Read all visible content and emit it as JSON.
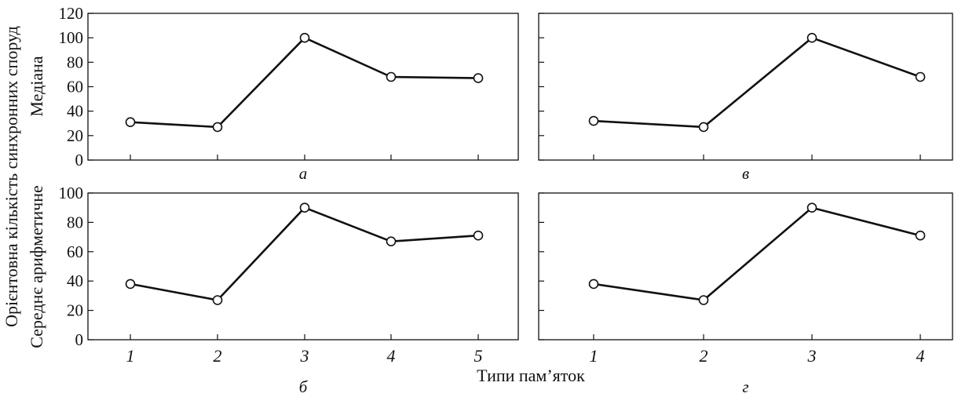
{
  "figure": {
    "y_outer_label": "Орієнтовна кількість синхронних споруд",
    "y_top_label": "Медіана",
    "y_bottom_label": "Середнє арифметичне",
    "x_label": "Типи пам’яток"
  },
  "chart_data": [
    {
      "type": "line",
      "panel_label": "а",
      "x": [
        "1",
        "2",
        "3",
        "4",
        "5"
      ],
      "values": [
        31,
        27,
        100,
        68,
        67
      ],
      "ylim": [
        0,
        120
      ],
      "yticks": [
        0,
        20,
        40,
        60,
        80,
        100,
        120
      ],
      "show_y_ticklabels": true,
      "show_x_ticklabels": false,
      "ylabel": "Медіана",
      "xlabel": ""
    },
    {
      "type": "line",
      "panel_label": "в",
      "x": [
        "1",
        "2",
        "3",
        "4"
      ],
      "values": [
        32,
        27,
        100,
        68
      ],
      "ylim": [
        0,
        120
      ],
      "yticks": [
        0,
        20,
        40,
        60,
        80,
        100,
        120
      ],
      "show_y_ticklabels": false,
      "show_x_ticklabels": false,
      "ylabel": "",
      "xlabel": ""
    },
    {
      "type": "line",
      "panel_label": "б",
      "x": [
        "1",
        "2",
        "3",
        "4",
        "5"
      ],
      "values": [
        38,
        27,
        90,
        67,
        71
      ],
      "ylim": [
        0,
        100
      ],
      "yticks": [
        0,
        20,
        40,
        60,
        80,
        100
      ],
      "show_y_ticklabels": true,
      "show_x_ticklabels": true,
      "ylabel": "Середнє арифметичне",
      "xlabel": ""
    },
    {
      "type": "line",
      "panel_label": "г",
      "x": [
        "1",
        "2",
        "3",
        "4"
      ],
      "values": [
        38,
        27,
        90,
        71
      ],
      "ylim": [
        0,
        100
      ],
      "yticks": [
        0,
        20,
        40,
        60,
        80,
        100
      ],
      "show_y_ticklabels": false,
      "show_x_ticklabels": true,
      "ylabel": "",
      "xlabel": ""
    }
  ]
}
